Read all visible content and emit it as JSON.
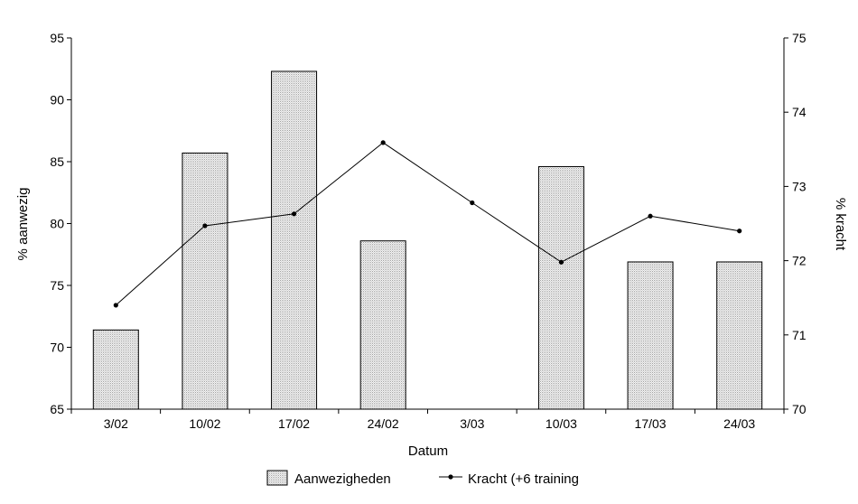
{
  "chart_data": {
    "type": "bar",
    "categories": [
      "3/02",
      "10/02",
      "17/02",
      "24/02",
      "3/03",
      "10/03",
      "17/03",
      "24/03"
    ],
    "xlabel": "Datum",
    "ylabel_left": "% aanwezig",
    "ylabel_right": "% kracht",
    "ylim_left": [
      65,
      95
    ],
    "yticks_left": [
      65,
      70,
      75,
      80,
      85,
      90,
      95
    ],
    "ylim_right": [
      70,
      75
    ],
    "yticks_right": [
      70,
      71,
      72,
      73,
      74,
      75
    ],
    "grid": false,
    "legend_position": "bottom",
    "series": [
      {
        "name": "Aanwezigheden",
        "type": "bar",
        "axis": "left",
        "values": [
          71.4,
          85.7,
          92.3,
          78.6,
          null,
          84.6,
          76.9,
          76.9
        ]
      },
      {
        "name": "Kracht (+6 training",
        "type": "line",
        "axis": "right",
        "values": [
          71.4,
          72.47,
          72.63,
          73.59,
          72.78,
          71.98,
          72.6,
          72.4
        ]
      }
    ]
  }
}
